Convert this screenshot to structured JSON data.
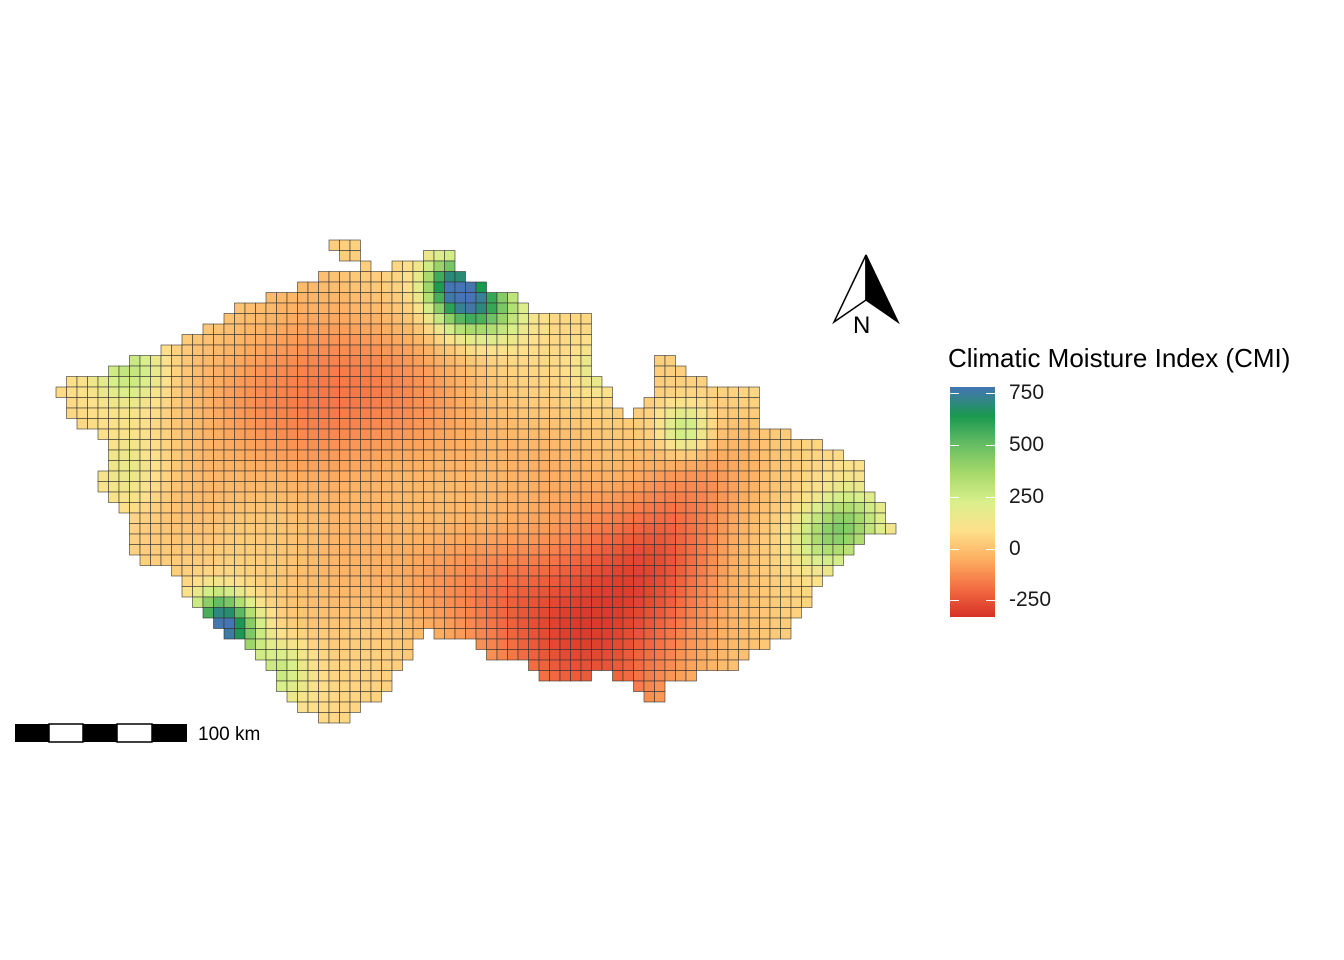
{
  "map": {
    "north_arrow": {
      "label": "N"
    },
    "legend": {
      "title": "Climatic Moisture Index (CMI)",
      "ticks": [
        {
          "label": "750",
          "value": 750
        },
        {
          "label": "500",
          "value": 500
        },
        {
          "label": "250",
          "value": 250
        },
        {
          "label": "0",
          "value": 0
        },
        {
          "label": "-250",
          "value": -250
        }
      ],
      "range": [
        -330,
        780
      ],
      "colors": [
        "#d73027",
        "#f46d43",
        "#fdae61",
        "#fee08b",
        "#d9ef8b",
        "#a6d96a",
        "#66bd63",
        "#1a9850",
        "#4575b4"
      ]
    },
    "scale_bar": {
      "label": "100 km"
    }
  }
}
